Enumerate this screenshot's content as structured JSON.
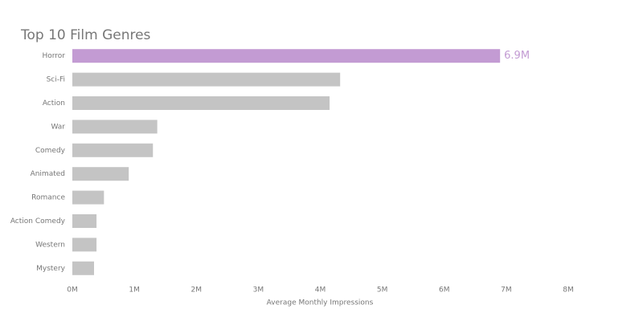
{
  "chart_data": {
    "type": "hbar",
    "title": "Top 10 Film Genres",
    "x_label": "Average Monthly Impressions",
    "categories": [
      "Horror",
      "Sci-Fi",
      "Action",
      "War",
      "Comedy",
      "Animated",
      "Romance",
      "Action Comedy",
      "Western",
      "Mystery"
    ],
    "values": [
      6.9,
      4.32,
      4.15,
      1.37,
      1.3,
      0.91,
      0.51,
      0.39,
      0.39,
      0.35
    ],
    "value_labels": [
      "6.9M",
      null,
      null,
      null,
      null,
      null,
      null,
      null,
      null,
      null
    ],
    "colors": [
      "#c39bd3",
      "#c4c4c4",
      "#c4c4c4",
      "#c4c4c4",
      "#c4c4c4",
      "#c4c4c4",
      "#c4c4c4",
      "#c4c4c4",
      "#c4c4c4",
      "#c4c4c4"
    ],
    "xlim": [
      0,
      8
    ],
    "xticks": [
      {
        "value": 0,
        "label": "0M"
      },
      {
        "value": 1,
        "label": "1M"
      },
      {
        "value": 2,
        "label": "2M"
      },
      {
        "value": 3,
        "label": "3M"
      },
      {
        "value": 4,
        "label": "4M"
      },
      {
        "value": 5,
        "label": "5M"
      },
      {
        "value": 6,
        "label": "6M"
      },
      {
        "value": 7,
        "label": "7M"
      },
      {
        "value": 8,
        "label": "8M"
      }
    ],
    "grid": false
  }
}
